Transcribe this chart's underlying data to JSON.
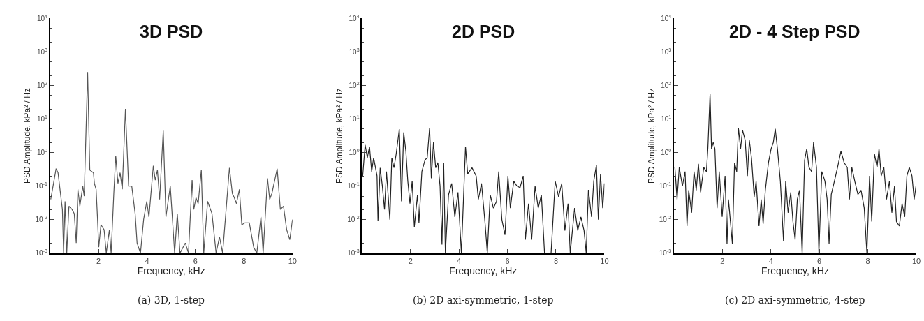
{
  "chart_data": [
    {
      "type": "line",
      "title": "3D PSD",
      "xlabel": "Frequency, kHz",
      "ylabel": "PSD Amplitude, kPa² / Hz",
      "log": true,
      "xlim": [
        0,
        10
      ],
      "xticks": [
        2,
        4,
        6,
        8,
        10
      ],
      "ylim": [
        0.001,
        10000
      ],
      "yticks": [
        {
          "value": 0.001,
          "label": "10$^{-3}$"
        },
        {
          "value": 0.01,
          "label": "10$^{-2}$"
        },
        {
          "value": 0.1,
          "label": "10$^{-1}$"
        },
        {
          "value": 1,
          "label": "10$^{0}$"
        },
        {
          "value": 10,
          "label": "10$^{1}$"
        },
        {
          "value": 100,
          "label": "10$^{2}$"
        },
        {
          "value": 1000,
          "label": "10$^{3}$"
        },
        {
          "value": 10000,
          "label": "10$^{4}$"
        }
      ],
      "annotations": [
        "(a) 3D, 1-step"
      ],
      "x": [
        0.03,
        0.25,
        0.33,
        0.51,
        0.56,
        0.62,
        0.69,
        0.78,
        0.91,
        1.0,
        1.08,
        1.15,
        1.23,
        1.35,
        1.41,
        1.55,
        1.64,
        1.79,
        1.83,
        1.9,
        1.96,
        2.01,
        2.1,
        2.23,
        2.32,
        2.45,
        2.52,
        2.63,
        2.71,
        2.8,
        2.89,
        2.98,
        3.11,
        3.24,
        3.37,
        3.51,
        3.59,
        3.73,
        3.86,
        3.99,
        4.08,
        4.26,
        4.34,
        4.43,
        4.52,
        4.67,
        4.78,
        4.96,
        5.05,
        5.14,
        5.25,
        5.36,
        5.58,
        5.71,
        5.86,
        5.93,
        6.02,
        6.11,
        6.24,
        6.34,
        6.5,
        6.68,
        6.85,
        6.99,
        7.12,
        7.4,
        7.52,
        7.6,
        7.69,
        7.81,
        7.91,
        8.04,
        8.22,
        8.4,
        8.53,
        8.7,
        8.79,
        8.97,
        9.06,
        9.15,
        9.37,
        9.5,
        9.63,
        9.76,
        9.89,
        10.0
      ],
      "series": [
        {
          "color": "#555555",
          "values": [
            0.04,
            0.33,
            0.25,
            0.02,
            0.001,
            0.035,
            0.001,
            0.025,
            0.02,
            0.015,
            0.002,
            0.08,
            0.025,
            0.1,
            0.05,
            250,
            0.3,
            0.25,
            0.12,
            0.08,
            0.01,
            0.0015,
            0.007,
            0.005,
            0.001,
            0.005,
            0.001,
            0.06,
            0.8,
            0.12,
            0.25,
            0.08,
            20,
            0.1,
            0.1,
            0.015,
            0.002,
            0.001,
            0.01,
            0.035,
            0.012,
            0.4,
            0.15,
            0.3,
            0.04,
            4.5,
            0.012,
            0.1,
            0.01,
            0.001,
            0.015,
            0.001,
            0.002,
            0.001,
            0.15,
            0.02,
            0.045,
            0.03,
            0.3,
            0.001,
            0.035,
            0.015,
            0.001,
            0.003,
            0.001,
            0.35,
            0.06,
            0.045,
            0.03,
            0.08,
            0.007,
            0.008,
            0.008,
            0.0015,
            0.001,
            0.012,
            0.001,
            0.17,
            0.04,
            0.06,
            0.33,
            0.02,
            0.025,
            0.005,
            0.0025,
            0.01
          ]
        }
      ]
    },
    {
      "type": "line",
      "title": "2D PSD",
      "xlabel": "Frequency, kHz",
      "ylabel": "PSD Amplitude, kPa² / Hz",
      "log": true,
      "xlim": [
        0,
        10
      ],
      "xticks": [
        2,
        4,
        6,
        8,
        10
      ],
      "ylim": [
        0.001,
        10000
      ],
      "yticks": [
        {
          "value": 0.001,
          "label": "10$^{-3}$"
        },
        {
          "value": 0.01,
          "label": "10$^{-2}$"
        },
        {
          "value": 0.1,
          "label": "10$^{-1}$"
        },
        {
          "value": 1,
          "label": "10$^{0}$"
        },
        {
          "value": 10,
          "label": "10$^{1}$"
        },
        {
          "value": 100,
          "label": "10$^{2}$"
        },
        {
          "value": 1000,
          "label": "10$^{3}$"
        },
        {
          "value": 10000,
          "label": "10$^{4}$"
        }
      ],
      "annotations": [
        "(b) 2D axi-symmetric, 1-step"
      ],
      "x": [
        0.03,
        0.13,
        0.22,
        0.31,
        0.4,
        0.48,
        0.62,
        0.66,
        0.75,
        0.84,
        0.93,
        1.01,
        1.15,
        1.23,
        1.32,
        1.41,
        1.54,
        1.63,
        1.72,
        1.81,
        1.89,
        1.98,
        2.07,
        2.16,
        2.29,
        2.35,
        2.47,
        2.6,
        2.69,
        2.79,
        2.86,
        2.95,
        3.04,
        3.13,
        3.22,
        3.3,
        3.37,
        3.44,
        3.57,
        3.7,
        3.83,
        3.96,
        4.1,
        4.27,
        4.36,
        4.54,
        4.71,
        4.8,
        4.93,
        5.07,
        5.17,
        5.29,
        5.42,
        5.55,
        5.64,
        5.77,
        5.9,
        6.02,
        6.12,
        6.26,
        6.39,
        6.52,
        6.65,
        6.74,
        6.87,
        7.0,
        7.14,
        7.27,
        7.4,
        7.53,
        7.67,
        7.8,
        7.97,
        8.11,
        8.24,
        8.37,
        8.5,
        8.59,
        8.77,
        8.9,
        9.03,
        9.16,
        9.25,
        9.34,
        9.47,
        9.56,
        9.67,
        9.75,
        9.84,
        9.93,
        10.0
      ],
      "series": [
        {
          "color": "#222222",
          "values": [
            0.2,
            1.7,
            0.7,
            1.5,
            0.27,
            0.7,
            0.2,
            0.009,
            0.35,
            0.1,
            0.02,
            0.27,
            0.01,
            0.7,
            0.35,
            0.9,
            5,
            0.035,
            4,
            1.1,
            0.14,
            0.03,
            0.14,
            0.006,
            0.055,
            0.008,
            0.27,
            0.6,
            0.7,
            5.5,
            0.17,
            2,
            0.35,
            0.5,
            0.1,
            0.0018,
            0.5,
            0.001,
            0.055,
            0.12,
            0.012,
            0.065,
            0.001,
            1.5,
            0.23,
            0.35,
            0.2,
            0.04,
            0.12,
            0.009,
            0.001,
            0.055,
            0.022,
            0.035,
            0.27,
            0.01,
            0.0035,
            0.2,
            0.022,
            0.14,
            0.1,
            0.09,
            0.2,
            0.0025,
            0.03,
            0.0025,
            0.1,
            0.022,
            0.055,
            0.001,
            0.001,
            0.001,
            0.14,
            0.048,
            0.12,
            0.0047,
            0.03,
            0.001,
            0.022,
            0.0047,
            0.012,
            0.0047,
            0.001,
            0.077,
            0.012,
            0.14,
            0.42,
            0.01,
            0.23,
            0.022,
            0.12
          ]
        }
      ]
    },
    {
      "type": "line",
      "title": "2D - 4 Step PSD",
      "xlabel": "Frequency, kHz",
      "ylabel": "PSD Amplitude, kPa² / Hz",
      "log": true,
      "xlim": [
        0,
        10
      ],
      "xticks": [
        2,
        4,
        6,
        8,
        10
      ],
      "ylim": [
        0.001,
        10000
      ],
      "yticks": [
        {
          "value": 0.001,
          "label": "10$^{-3}$"
        },
        {
          "value": 0.01,
          "label": "10$^{-2}$"
        },
        {
          "value": 0.1,
          "label": "10$^{-1}$"
        },
        {
          "value": 1,
          "label": "10$^{0}$"
        },
        {
          "value": 10,
          "label": "10$^{1}$"
        },
        {
          "value": 100,
          "label": "10$^{2}$"
        },
        {
          "value": 1000,
          "label": "10$^{3}$"
        },
        {
          "value": 10000,
          "label": "10$^{4}$"
        }
      ],
      "annotations": [
        "(c) 2D axi-symmetric, 4-step"
      ],
      "x": [
        0.04,
        0.13,
        0.22,
        0.35,
        0.46,
        0.54,
        0.61,
        0.73,
        0.83,
        0.92,
        1.01,
        1.1,
        1.23,
        1.34,
        1.4,
        1.49,
        1.55,
        1.62,
        1.69,
        1.78,
        1.87,
        1.99,
        2.11,
        2.19,
        2.25,
        2.41,
        2.5,
        2.59,
        2.66,
        2.75,
        2.83,
        2.94,
        3.03,
        3.11,
        3.2,
        3.31,
        3.39,
        3.51,
        3.6,
        3.68,
        3.77,
        3.9,
        4.01,
        4.1,
        4.18,
        4.27,
        4.39,
        4.52,
        4.61,
        4.71,
        4.82,
        4.91,
        5.0,
        5.09,
        5.18,
        5.29,
        5.39,
        5.48,
        5.57,
        5.68,
        5.76,
        5.88,
        5.98,
        6.1,
        6.23,
        6.32,
        6.4,
        6.49,
        6.62,
        6.75,
        6.89,
        7.02,
        7.15,
        7.24,
        7.34,
        7.46,
        7.59,
        7.72,
        7.85,
        7.96,
        8.07,
        8.16,
        8.27,
        8.38,
        8.46,
        8.55,
        8.66,
        8.77,
        8.89,
        8.99,
        9.1,
        9.18,
        9.3,
        9.41,
        9.52,
        9.61,
        9.71,
        9.82,
        9.91,
        10.0
      ],
      "series": [
        {
          "color": "#222222",
          "values": [
            0.36,
            0.04,
            0.36,
            0.1,
            0.27,
            0.0064,
            0.075,
            0.016,
            0.27,
            0.075,
            0.46,
            0.065,
            0.36,
            0.27,
            1.3,
            57,
            1.3,
            2,
            1.3,
            0.022,
            0.27,
            0.012,
            0.2,
            0.0019,
            0.04,
            0.0019,
            0.5,
            0.27,
            5.5,
            1.3,
            4.7,
            2.3,
            0.2,
            2.3,
            0.68,
            0.048,
            0.14,
            0.0064,
            0.04,
            0.0075,
            0.075,
            0.5,
            1.3,
            2,
            5.1,
            1.3,
            0.14,
            0.0023,
            0.14,
            0.016,
            0.065,
            0.0087,
            0.0025,
            0.04,
            0.075,
            0.001,
            0.58,
            1.3,
            0.36,
            0.27,
            2,
            0.36,
            0.001,
            0.27,
            0.14,
            0.04,
            0.0019,
            0.056,
            0.14,
            0.36,
            1.1,
            0.5,
            0.36,
            0.04,
            0.36,
            0.14,
            0.056,
            0.075,
            0.022,
            0.001,
            0.2,
            0.0087,
            0.93,
            0.36,
            1.3,
            0.2,
            0.36,
            0.04,
            0.14,
            0.016,
            0.1,
            0.0087,
            0.0064,
            0.03,
            0.012,
            0.2,
            0.36,
            0.2,
            0.04,
            0.12
          ]
        }
      ]
    }
  ]
}
